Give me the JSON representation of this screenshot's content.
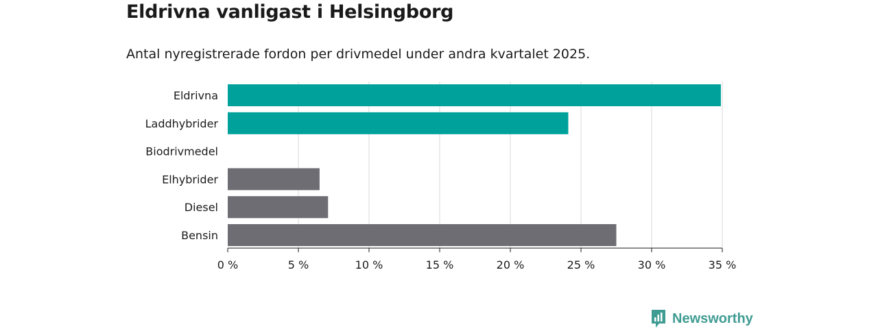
{
  "header": {
    "title": "Eldrivna vanligast i Helsingborg",
    "subtitle": "Antal nyregistrerade fordon per drivmedel under andra kvartalet 2025."
  },
  "brand": {
    "name": "Newsworthy",
    "color": "#3f9c93"
  },
  "chart_data": {
    "type": "bar",
    "orientation": "horizontal",
    "categories": [
      "Eldrivna",
      "Laddhybrider",
      "Biodrivmedel",
      "Elhybrider",
      "Diesel",
      "Bensin"
    ],
    "values": [
      34.9,
      24.1,
      0,
      6.5,
      7.1,
      27.5
    ],
    "colors": [
      "#00a19a",
      "#00a19a",
      "#00a19a",
      "#6e6d73",
      "#6e6d73",
      "#6e6d73"
    ],
    "xlim": [
      0,
      35
    ],
    "xticks": [
      0,
      5,
      10,
      15,
      20,
      25,
      30,
      35
    ],
    "xtick_labels": [
      "0 %",
      "5 %",
      "10 %",
      "15 %",
      "20 %",
      "25 %",
      "30 %",
      "35 %"
    ],
    "grid": true
  }
}
